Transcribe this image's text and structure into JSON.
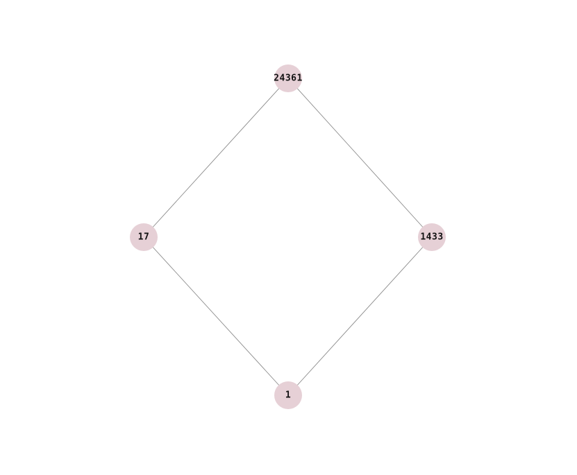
{
  "diagram": {
    "type": "graph",
    "node_color": "#e6d0d6",
    "edge_color": "#8a8a8a",
    "nodes": [
      {
        "id": "24361",
        "label": "24361"
      },
      {
        "id": "17",
        "label": "17"
      },
      {
        "id": "1433",
        "label": "1433"
      },
      {
        "id": "1",
        "label": "1"
      }
    ],
    "edges": [
      {
        "source": "24361",
        "target": "17"
      },
      {
        "source": "24361",
        "target": "1433"
      },
      {
        "source": "17",
        "target": "1"
      },
      {
        "source": "1433",
        "target": "1"
      }
    ]
  }
}
